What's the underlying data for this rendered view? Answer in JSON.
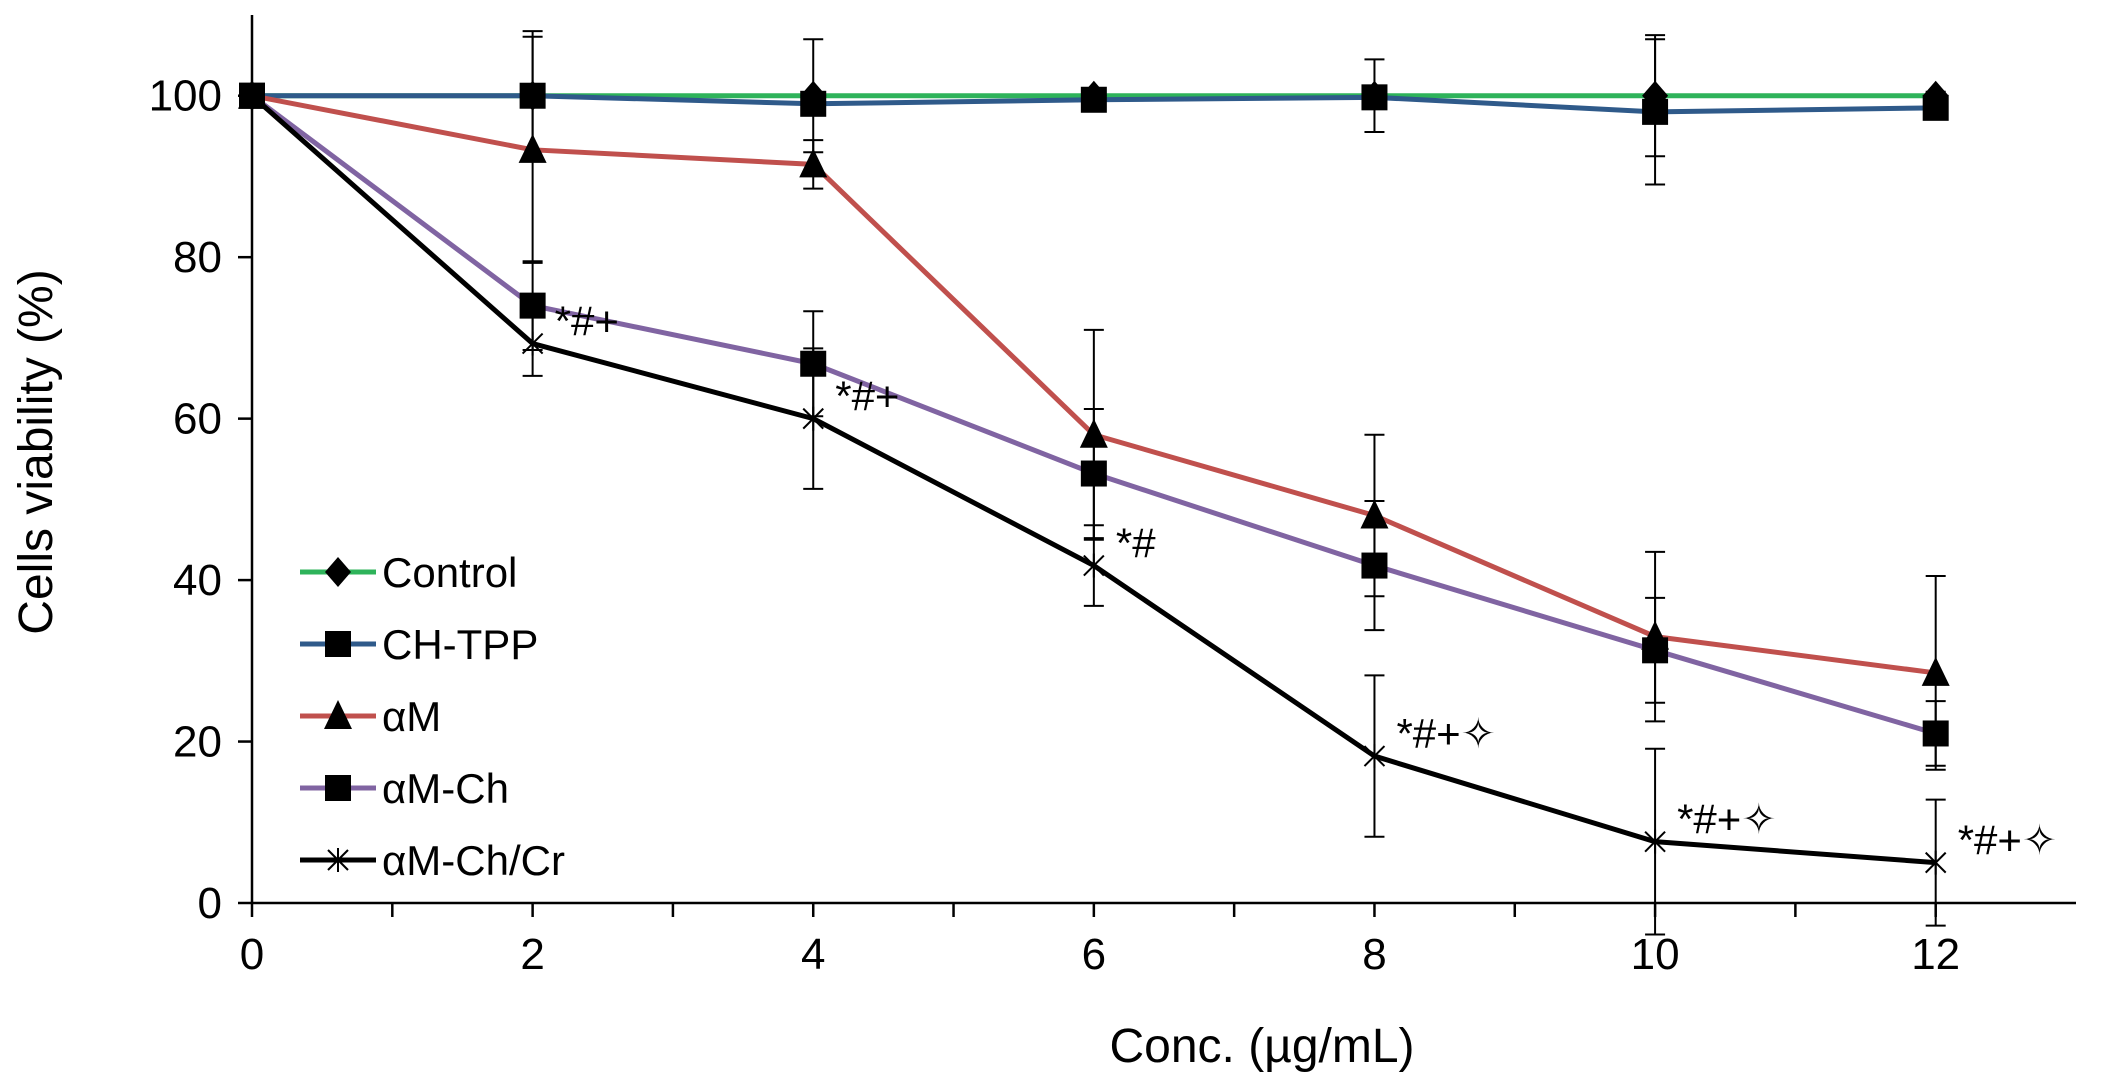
{
  "chart_data": {
    "type": "line",
    "title": "",
    "xlabel": "Conc. (µg/mL)",
    "ylabel": "Cells viability (%)",
    "xlim": [
      0,
      13
    ],
    "ylim": [
      0,
      110
    ],
    "x_ticks": [
      0,
      2,
      4,
      6,
      8,
      10,
      12
    ],
    "y_ticks": [
      0,
      20,
      40,
      60,
      80,
      100
    ],
    "grid": false,
    "legend_position": "bottom-left",
    "x": [
      0,
      2,
      4,
      6,
      8,
      10,
      12
    ],
    "series": [
      {
        "name": "Control",
        "color": "#2eb35a",
        "marker": "diamond",
        "values": [
          100,
          100,
          100,
          100,
          100,
          100,
          100
        ],
        "errors": [
          0,
          8,
          7,
          0.5,
          4.5,
          7.5,
          0.5
        ]
      },
      {
        "name": "CH-TPP",
        "color": "#2f5a8a",
        "marker": "square",
        "values": [
          100,
          100,
          99,
          99.5,
          99.8,
          98,
          98.5
        ],
        "errors": [
          0,
          0,
          0,
          0,
          0,
          9,
          0
        ]
      },
      {
        "name": "αM",
        "color": "#c0504d",
        "marker": "triangle",
        "values": [
          100,
          93.3,
          91.5,
          58,
          48,
          33,
          28.5
        ],
        "errors": [
          0,
          14,
          3,
          13,
          10,
          10.5,
          12
        ]
      },
      {
        "name": "αM-Ch",
        "color": "#8064a2",
        "marker": "square",
        "values": [
          100,
          74,
          66.8,
          53.2,
          41.8,
          31.3,
          21
        ],
        "errors": [
          0,
          5.5,
          6.5,
          8,
          8,
          6.5,
          4
        ]
      },
      {
        "name": "αM-Ch/Cr",
        "color": "#000000",
        "marker": "star",
        "values": [
          100,
          69.3,
          60,
          41.8,
          18.2,
          7.6,
          5
        ],
        "errors": [
          0,
          4,
          8.7,
          5,
          10,
          11.5,
          7.8
        ]
      }
    ],
    "annotations": [
      {
        "x": 2,
        "y": 69.3,
        "text": "*#+"
      },
      {
        "x": 4,
        "y": 60,
        "text": "*#+"
      },
      {
        "x": 6,
        "y": 41.8,
        "text": "*#"
      },
      {
        "x": 8,
        "y": 18.2,
        "text": "*#+✧"
      },
      {
        "x": 10,
        "y": 7.6,
        "text": "*#+✧"
      },
      {
        "x": 12,
        "y": 5,
        "text": "*#+✧"
      }
    ]
  }
}
